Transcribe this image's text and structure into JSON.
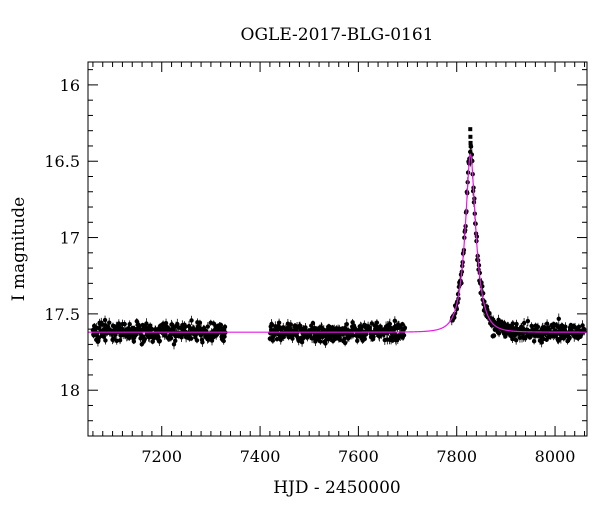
{
  "chart_data": {
    "type": "scatter",
    "title": "OGLE-2017-BLG-0161",
    "xlabel": "HJD - 2450000",
    "ylabel": "I magnitude",
    "xlim": [
      7050,
      8065
    ],
    "ylim": [
      18.3,
      15.85
    ],
    "y_inverted": true,
    "x_ticks": [
      7200,
      7400,
      7600,
      7800,
      8000
    ],
    "y_ticks": [
      16,
      16.5,
      17,
      17.5,
      18
    ],
    "y_tick_labels": [
      "16",
      "16.5",
      "17",
      "17.5",
      "18"
    ],
    "grid": false,
    "legend": "none",
    "colors": {
      "points": "#000000",
      "model": "#e619e6"
    },
    "baseline_mag": 17.62,
    "observation_seasons": [
      [
        7060,
        7330
      ],
      [
        7420,
        7695
      ],
      [
        7790,
        8060
      ]
    ],
    "peak": {
      "hjd": 7828,
      "model_mag": 16.44,
      "brightest_points": [
        16.29,
        16.34,
        16.38,
        16.4
      ]
    },
    "series": [
      {
        "kind": "points",
        "x_range": [
          7060,
          8060
        ],
        "y_scatter": 0.12
      },
      {
        "kind": "model_curve",
        "t0": 7828,
        "baseline": 17.62,
        "peak_mag": 16.44
      }
    ]
  }
}
